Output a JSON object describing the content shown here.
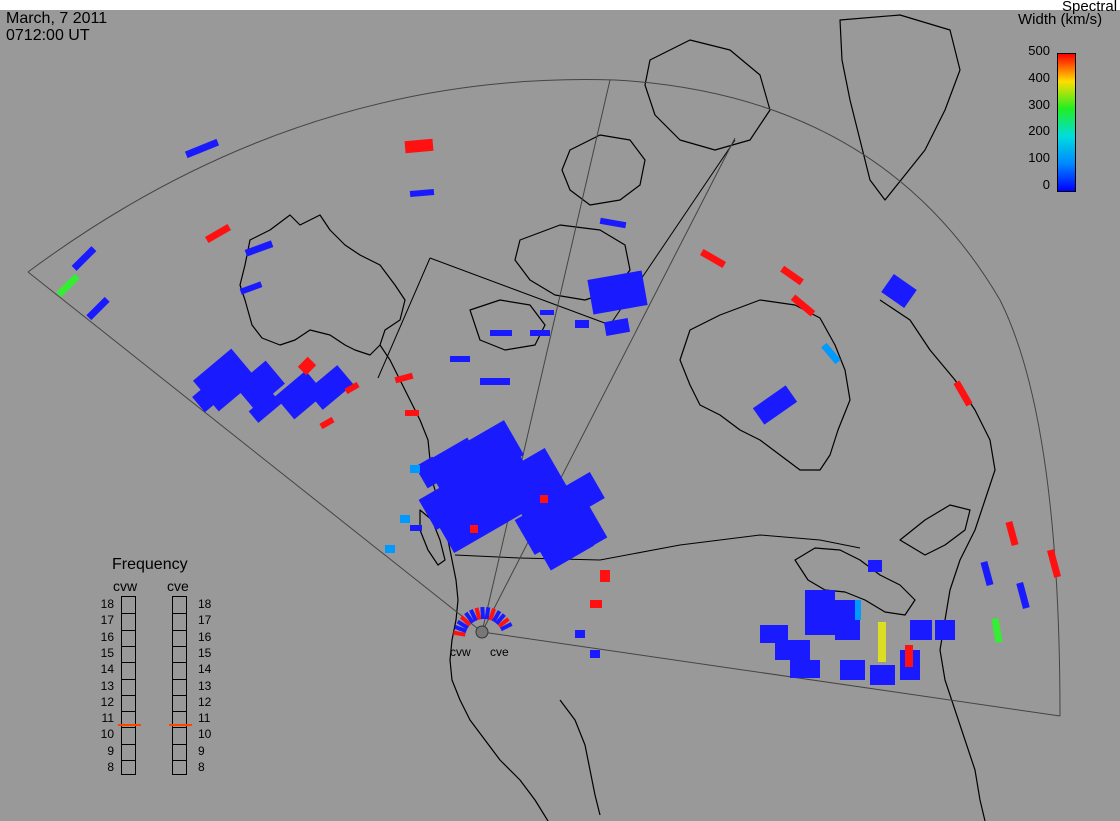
{
  "header": {
    "date": "March, 7 2011",
    "time": "0712:00 UT"
  },
  "colorbar": {
    "title_line1": "Spectral",
    "title_line2": "Width (km/s)",
    "ticks": [
      "500",
      "400",
      "300",
      "200",
      "100",
      "0"
    ],
    "colors": [
      "#ff0000",
      "#ffdd00",
      "#22ee22",
      "#00dddd",
      "#0088ff",
      "#0000ff"
    ]
  },
  "radars": {
    "west": "cvw",
    "east": "cve"
  },
  "frequency": {
    "title": "Frequency",
    "col_west": "cvw",
    "col_east": "cve",
    "levels": [
      "18",
      "17",
      "16",
      "15",
      "14",
      "13",
      "12",
      "11",
      "10",
      "9",
      "8"
    ],
    "marker_value": 10.7,
    "marker_color": "#ff4400"
  },
  "colors": {
    "background": "#999999",
    "land_outline": "#000000",
    "velocity_blue": "#1a1aff",
    "red": "#ff1111"
  }
}
